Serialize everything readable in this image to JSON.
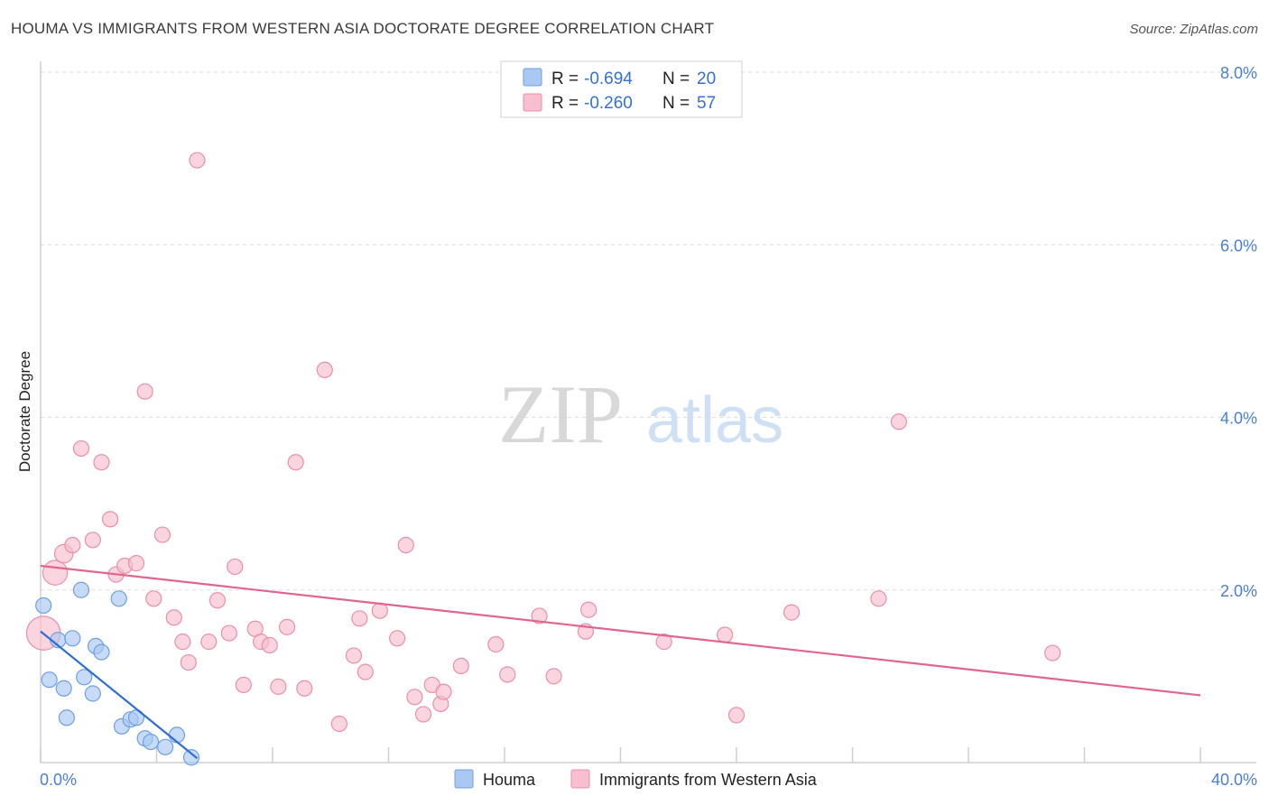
{
  "title": "HOUMA VS IMMIGRANTS FROM WESTERN ASIA DOCTORATE DEGREE CORRELATION CHART",
  "source": "Source: ZipAtlas.com",
  "watermark": {
    "zip": "ZIP",
    "atlas": "atlas"
  },
  "legend": {
    "rows": [
      {
        "r_label": "R =",
        "r_value": "-0.694",
        "n_label": "N =",
        "n_value": "20",
        "color": "#a9c8f2",
        "stroke": "#6f9fe0"
      },
      {
        "r_label": "R =",
        "r_value": "-0.260",
        "n_label": "N =",
        "n_value": "57",
        "color": "#f7bfd0",
        "stroke": "#ea8fab"
      }
    ]
  },
  "bottom_legend": [
    {
      "label": "Houma",
      "color": "#a9c8f2",
      "stroke": "#6f9fe0"
    },
    {
      "label": "Immigrants from Western Asia",
      "color": "#f7bfd0",
      "stroke": "#ea8fab"
    }
  ],
  "chart_data": {
    "type": "scatter",
    "title": "HOUMA VS IMMIGRANTS FROM WESTERN ASIA DOCTORATE DEGREE CORRELATION CHART",
    "xlabel": "",
    "ylabel": "Doctorate Degree",
    "xlim": [
      0,
      40
    ],
    "ylim": [
      0,
      8
    ],
    "x_tick_labels": [
      "0.0%",
      "40.0%"
    ],
    "y_tick_labels": [
      "2.0%",
      "4.0%",
      "6.0%",
      "8.0%"
    ],
    "y_ticks": [
      2,
      4,
      6,
      8
    ],
    "grid": true,
    "legend_position": "top-center",
    "series": [
      {
        "name": "Houma",
        "color": "#6f9fe0",
        "fill": "#a9c8f2",
        "trend": {
          "x0": 0,
          "y0": 1.52,
          "x1": 5.4,
          "y1": 0.05,
          "color": "#2f6fd0"
        },
        "points": [
          {
            "x": 0.1,
            "y": 1.82,
            "s": 1
          },
          {
            "x": 0.6,
            "y": 1.42,
            "s": 1
          },
          {
            "x": 1.1,
            "y": 1.44,
            "s": 1
          },
          {
            "x": 1.4,
            "y": 2.0,
            "s": 1
          },
          {
            "x": 2.7,
            "y": 1.9,
            "s": 1
          },
          {
            "x": 1.9,
            "y": 1.35,
            "s": 1
          },
          {
            "x": 2.1,
            "y": 1.28,
            "s": 1
          },
          {
            "x": 0.3,
            "y": 0.96,
            "s": 1
          },
          {
            "x": 0.8,
            "y": 0.86,
            "s": 1
          },
          {
            "x": 1.5,
            "y": 0.99,
            "s": 1
          },
          {
            "x": 1.8,
            "y": 0.8,
            "s": 1
          },
          {
            "x": 0.9,
            "y": 0.52,
            "s": 1
          },
          {
            "x": 2.8,
            "y": 0.42,
            "s": 1
          },
          {
            "x": 3.1,
            "y": 0.5,
            "s": 1
          },
          {
            "x": 3.3,
            "y": 0.52,
            "s": 1
          },
          {
            "x": 3.6,
            "y": 0.28,
            "s": 1
          },
          {
            "x": 3.8,
            "y": 0.24,
            "s": 1
          },
          {
            "x": 4.3,
            "y": 0.18,
            "s": 1
          },
          {
            "x": 4.7,
            "y": 0.32,
            "s": 1
          },
          {
            "x": 5.2,
            "y": 0.06,
            "s": 1
          }
        ]
      },
      {
        "name": "Immigrants from Western Asia",
        "color": "#ea8fab",
        "fill": "#f7bfd0",
        "trend": {
          "x0": 0,
          "y0": 2.28,
          "x1": 40,
          "y1": 0.78,
          "color": "#e0668f"
        },
        "points": [
          {
            "x": 0.1,
            "y": 1.5,
            "s": 2.2
          },
          {
            "x": 0.5,
            "y": 2.2,
            "s": 1.6
          },
          {
            "x": 0.8,
            "y": 2.42,
            "s": 1.2
          },
          {
            "x": 1.1,
            "y": 2.52,
            "s": 1
          },
          {
            "x": 1.4,
            "y": 3.64,
            "s": 1
          },
          {
            "x": 1.8,
            "y": 2.58,
            "s": 1
          },
          {
            "x": 2.1,
            "y": 3.48,
            "s": 1
          },
          {
            "x": 2.4,
            "y": 2.82,
            "s": 1
          },
          {
            "x": 2.6,
            "y": 2.18,
            "s": 1
          },
          {
            "x": 2.9,
            "y": 2.28,
            "s": 1
          },
          {
            "x": 3.3,
            "y": 2.31,
            "s": 1
          },
          {
            "x": 3.6,
            "y": 4.3,
            "s": 1
          },
          {
            "x": 3.9,
            "y": 1.9,
            "s": 1
          },
          {
            "x": 4.2,
            "y": 2.64,
            "s": 1
          },
          {
            "x": 4.6,
            "y": 1.68,
            "s": 1
          },
          {
            "x": 4.9,
            "y": 1.4,
            "s": 1
          },
          {
            "x": 5.1,
            "y": 1.16,
            "s": 1
          },
          {
            "x": 5.4,
            "y": 6.98,
            "s": 1
          },
          {
            "x": 5.8,
            "y": 1.4,
            "s": 1
          },
          {
            "x": 6.1,
            "y": 1.88,
            "s": 1
          },
          {
            "x": 6.5,
            "y": 1.5,
            "s": 1
          },
          {
            "x": 6.7,
            "y": 2.27,
            "s": 1
          },
          {
            "x": 7.0,
            "y": 0.9,
            "s": 1
          },
          {
            "x": 7.4,
            "y": 1.55,
            "s": 1
          },
          {
            "x": 7.6,
            "y": 1.4,
            "s": 1
          },
          {
            "x": 7.9,
            "y": 1.36,
            "s": 1
          },
          {
            "x": 8.2,
            "y": 0.88,
            "s": 1
          },
          {
            "x": 8.5,
            "y": 1.57,
            "s": 1
          },
          {
            "x": 8.8,
            "y": 3.48,
            "s": 1
          },
          {
            "x": 9.1,
            "y": 0.86,
            "s": 1
          },
          {
            "x": 9.8,
            "y": 4.55,
            "s": 1
          },
          {
            "x": 10.3,
            "y": 0.45,
            "s": 1
          },
          {
            "x": 10.8,
            "y": 1.24,
            "s": 1
          },
          {
            "x": 11.2,
            "y": 1.05,
            "s": 1
          },
          {
            "x": 11.7,
            "y": 1.76,
            "s": 1
          },
          {
            "x": 11.0,
            "y": 1.67,
            "s": 1
          },
          {
            "x": 12.3,
            "y": 1.44,
            "s": 1
          },
          {
            "x": 12.6,
            "y": 2.52,
            "s": 1
          },
          {
            "x": 12.9,
            "y": 0.76,
            "s": 1
          },
          {
            "x": 13.2,
            "y": 0.56,
            "s": 1
          },
          {
            "x": 13.5,
            "y": 0.9,
            "s": 1
          },
          {
            "x": 13.8,
            "y": 0.68,
            "s": 1
          },
          {
            "x": 13.9,
            "y": 0.82,
            "s": 1
          },
          {
            "x": 14.5,
            "y": 1.12,
            "s": 1
          },
          {
            "x": 15.7,
            "y": 1.37,
            "s": 1
          },
          {
            "x": 16.1,
            "y": 1.02,
            "s": 1
          },
          {
            "x": 17.2,
            "y": 1.7,
            "s": 1
          },
          {
            "x": 17.7,
            "y": 1.0,
            "s": 1
          },
          {
            "x": 18.8,
            "y": 1.52,
            "s": 1
          },
          {
            "x": 18.9,
            "y": 1.77,
            "s": 1
          },
          {
            "x": 21.5,
            "y": 1.4,
            "s": 1
          },
          {
            "x": 23.6,
            "y": 1.48,
            "s": 1
          },
          {
            "x": 24.0,
            "y": 0.55,
            "s": 1
          },
          {
            "x": 25.9,
            "y": 1.74,
            "s": 1
          },
          {
            "x": 28.9,
            "y": 1.9,
            "s": 1
          },
          {
            "x": 29.6,
            "y": 3.95,
            "s": 1
          },
          {
            "x": 34.9,
            "y": 1.27,
            "s": 1
          }
        ]
      }
    ]
  }
}
